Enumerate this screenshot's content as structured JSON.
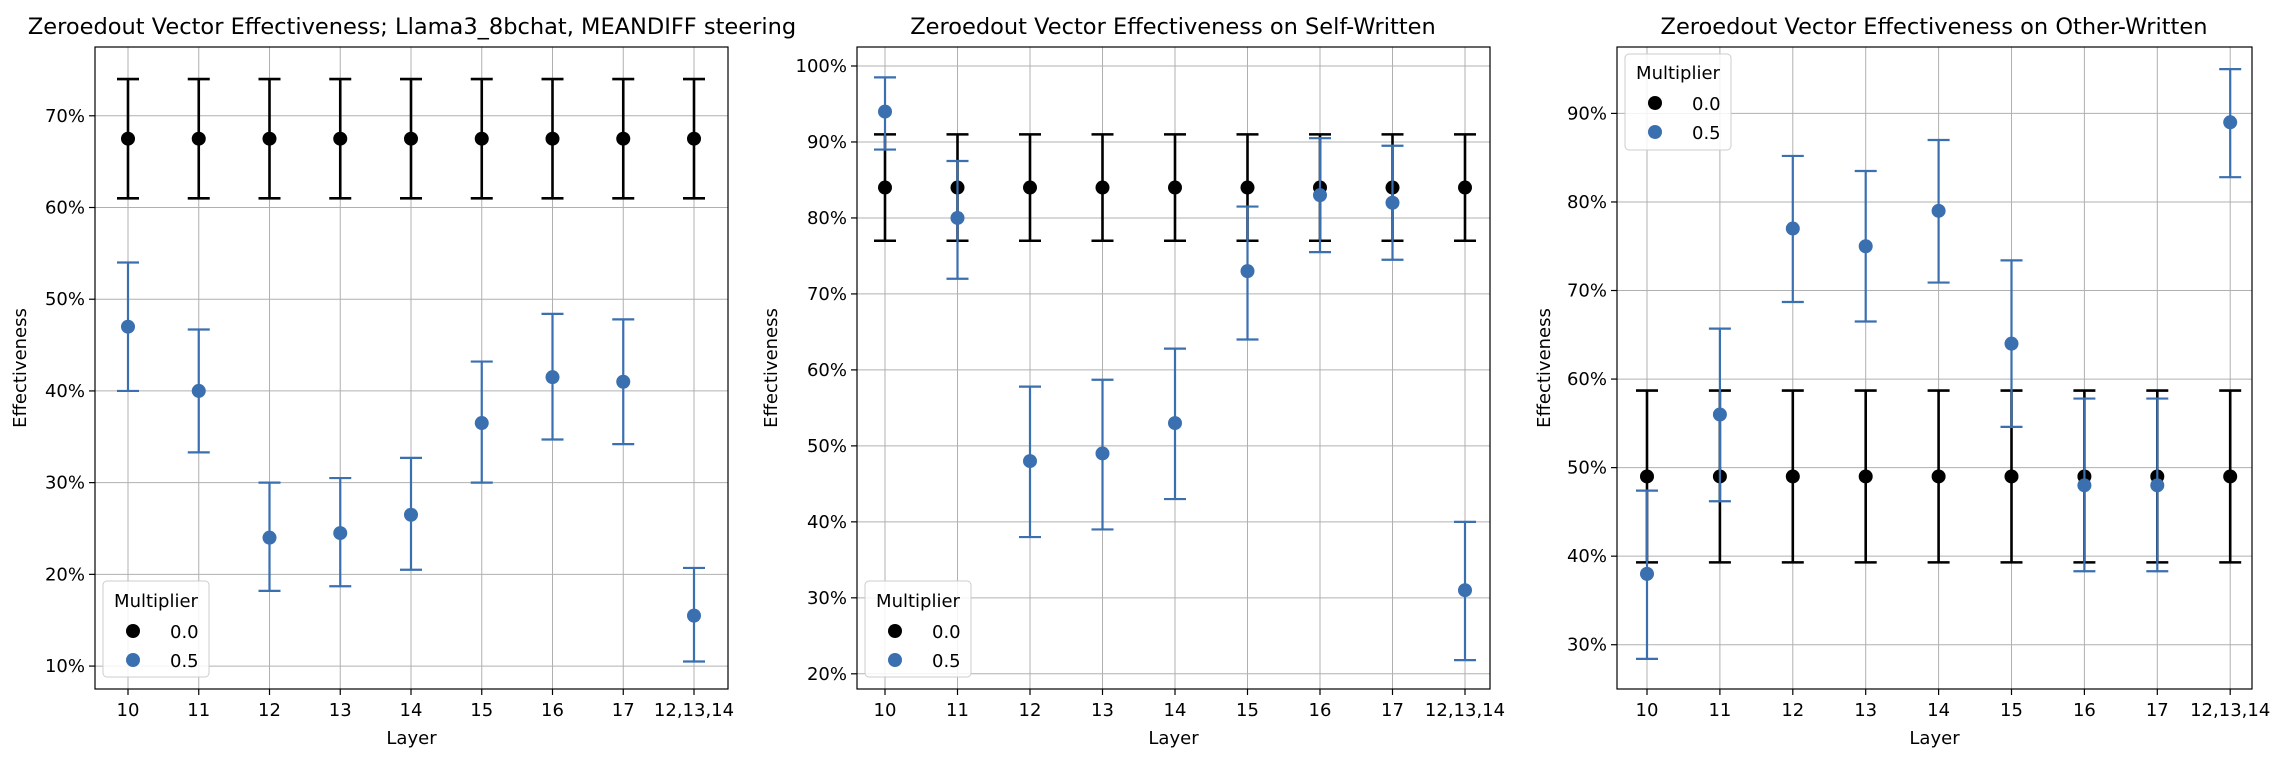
{
  "chart_data": [
    {
      "type": "scatter",
      "title": "Zeroedout Vector Effectiveness; Llama3_8bchat, MEANDIFF steering",
      "xlabel": "Layer",
      "ylabel": "Effectiveness",
      "categories": [
        "10",
        "11",
        "12",
        "13",
        "14",
        "15",
        "16",
        "17",
        "12,13,14"
      ],
      "ylim": [
        0.075,
        0.775
      ],
      "yticks": [
        0.1,
        0.2,
        0.3,
        0.4,
        0.5,
        0.6,
        0.7
      ],
      "ytick_labels": [
        "10%",
        "20%",
        "30%",
        "40%",
        "50%",
        "60%",
        "70%"
      ],
      "grid": true,
      "legend": {
        "title": "Multiplier",
        "position": "lower left"
      },
      "series": [
        {
          "name": "0.0",
          "color": "#000000",
          "values": [
            0.675,
            0.675,
            0.675,
            0.675,
            0.675,
            0.675,
            0.675,
            0.675,
            0.675
          ],
          "lower": [
            0.61,
            0.61,
            0.61,
            0.61,
            0.61,
            0.61,
            0.61,
            0.61,
            0.61
          ],
          "upper": [
            0.74,
            0.74,
            0.74,
            0.74,
            0.74,
            0.74,
            0.74,
            0.74,
            0.74
          ]
        },
        {
          "name": "0.5",
          "color": "#3a6fb0",
          "values": [
            0.47,
            0.4,
            0.24,
            0.245,
            0.265,
            0.365,
            0.415,
            0.41,
            0.155
          ],
          "lower": [
            0.4,
            0.333,
            0.182,
            0.187,
            0.205,
            0.3,
            0.347,
            0.342,
            0.105
          ],
          "upper": [
            0.54,
            0.467,
            0.3,
            0.305,
            0.327,
            0.432,
            0.484,
            0.478,
            0.207
          ]
        }
      ]
    },
    {
      "type": "scatter",
      "title": "Zeroedout Vector Effectiveness on Self-Written",
      "xlabel": "Layer",
      "ylabel": "Effectiveness",
      "categories": [
        "10",
        "11",
        "12",
        "13",
        "14",
        "15",
        "16",
        "17",
        "12,13,14"
      ],
      "ylim": [
        0.18,
        1.025
      ],
      "yticks": [
        0.2,
        0.3,
        0.4,
        0.5,
        0.6,
        0.7,
        0.8,
        0.9,
        1.0
      ],
      "ytick_labels": [
        "20%",
        "30%",
        "40%",
        "50%",
        "60%",
        "70%",
        "80%",
        "90%",
        "100%"
      ],
      "grid": true,
      "legend": {
        "title": "Multiplier",
        "position": "lower left"
      },
      "series": [
        {
          "name": "0.0",
          "color": "#000000",
          "values": [
            0.84,
            0.84,
            0.84,
            0.84,
            0.84,
            0.84,
            0.84,
            0.84,
            0.84
          ],
          "lower": [
            0.77,
            0.77,
            0.77,
            0.77,
            0.77,
            0.77,
            0.77,
            0.77,
            0.77
          ],
          "upper": [
            0.91,
            0.91,
            0.91,
            0.91,
            0.91,
            0.91,
            0.91,
            0.91,
            0.91
          ]
        },
        {
          "name": "0.5",
          "color": "#3a6fb0",
          "values": [
            0.94,
            0.8,
            0.48,
            0.49,
            0.53,
            0.73,
            0.83,
            0.82,
            0.31
          ],
          "lower": [
            0.89,
            0.72,
            0.38,
            0.39,
            0.43,
            0.64,
            0.755,
            0.745,
            0.218
          ],
          "upper": [
            0.985,
            0.875,
            0.578,
            0.587,
            0.628,
            0.815,
            0.905,
            0.895,
            0.4
          ]
        }
      ]
    },
    {
      "type": "scatter",
      "title": "Zeroedout Vector Effectiveness on Other-Written",
      "xlabel": "Layer",
      "ylabel": "Effectiveness",
      "categories": [
        "10",
        "11",
        "12",
        "13",
        "14",
        "15",
        "16",
        "17",
        "12,13,14"
      ],
      "ylim": [
        0.25,
        0.975
      ],
      "yticks": [
        0.3,
        0.4,
        0.5,
        0.6,
        0.7,
        0.8,
        0.9
      ],
      "ytick_labels": [
        "30%",
        "40%",
        "50%",
        "60%",
        "70%",
        "80%",
        "90%"
      ],
      "grid": true,
      "legend": {
        "title": "Multiplier",
        "position": "upper left"
      },
      "series": [
        {
          "name": "0.0",
          "color": "#000000",
          "values": [
            0.49,
            0.49,
            0.49,
            0.49,
            0.49,
            0.49,
            0.49,
            0.49,
            0.49
          ],
          "lower": [
            0.393,
            0.393,
            0.393,
            0.393,
            0.393,
            0.393,
            0.393,
            0.393,
            0.393
          ],
          "upper": [
            0.587,
            0.587,
            0.587,
            0.587,
            0.587,
            0.587,
            0.587,
            0.587,
            0.587
          ]
        },
        {
          "name": "0.5",
          "color": "#3a6fb0",
          "values": [
            0.38,
            0.56,
            0.77,
            0.75,
            0.79,
            0.64,
            0.48,
            0.48,
            0.89
          ],
          "lower": [
            0.284,
            0.462,
            0.687,
            0.665,
            0.709,
            0.546,
            0.383,
            0.383,
            0.828
          ],
          "upper": [
            0.474,
            0.657,
            0.852,
            0.835,
            0.87,
            0.734,
            0.578,
            0.578,
            0.95
          ]
        }
      ]
    }
  ]
}
